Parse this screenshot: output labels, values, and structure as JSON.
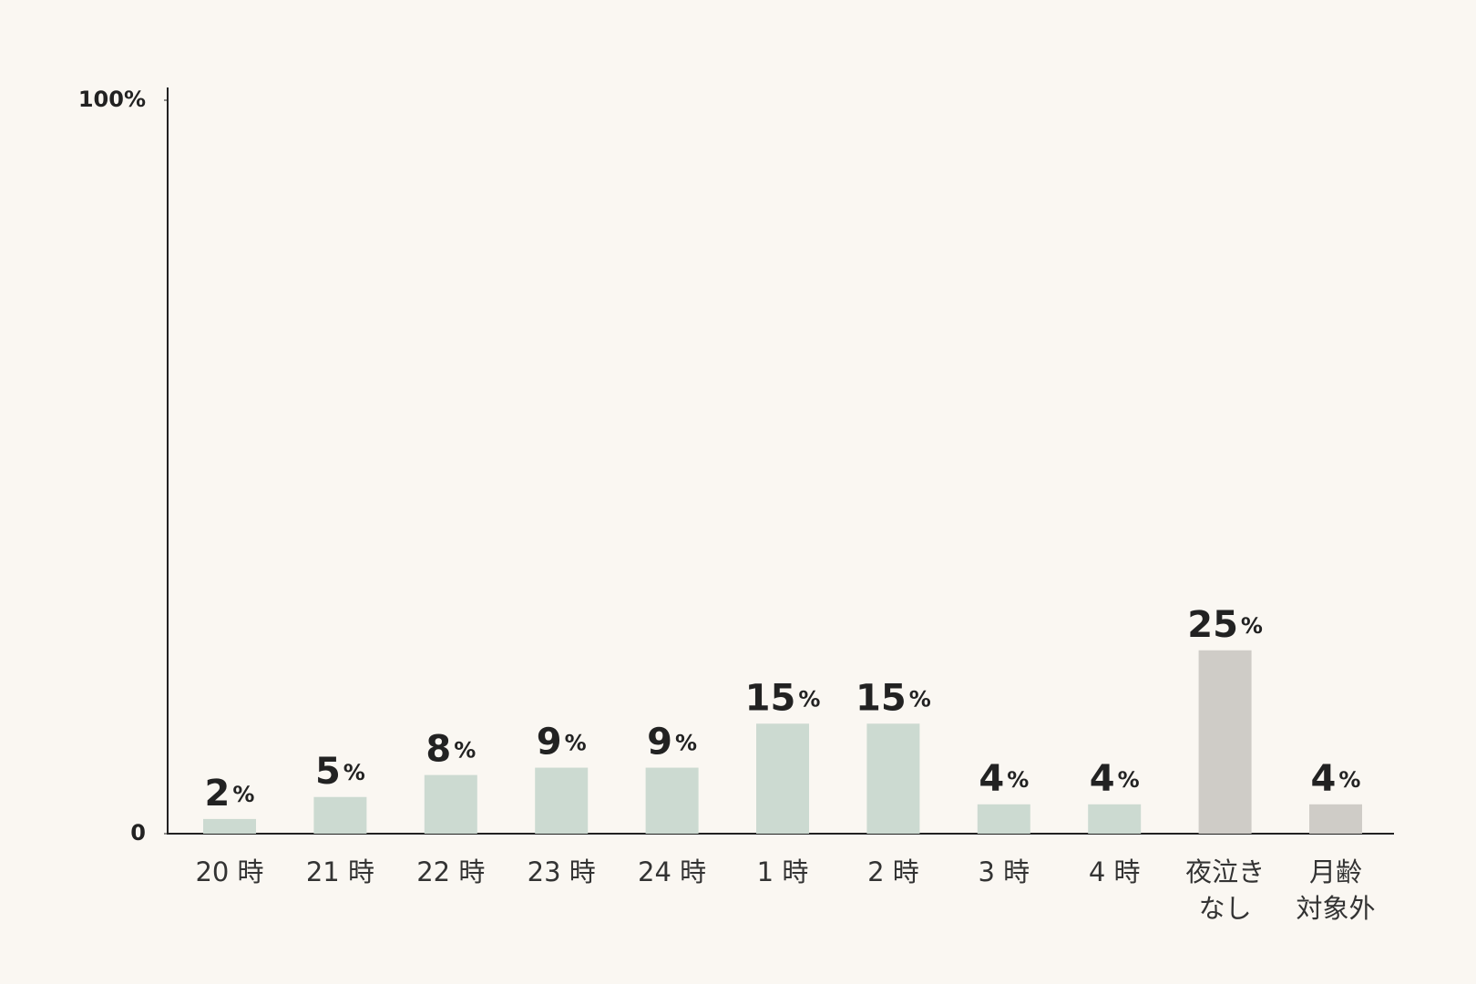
{
  "chart_data": {
    "type": "bar",
    "categories": [
      "20 時",
      "21 時",
      "22 時",
      "23 時",
      "24 時",
      "1 時",
      "2 時",
      "3 時",
      "4 時",
      "夜泣き\nなし",
      "月齢\n対象外"
    ],
    "values": [
      2,
      5,
      8,
      9,
      9,
      15,
      15,
      4,
      4,
      25,
      4
    ],
    "value_labels": [
      "2%",
      "5%",
      "8%",
      "9%",
      "9%",
      "15%",
      "15%",
      "4%",
      "4%",
      "25%",
      "4%"
    ],
    "colors": [
      "#ccdad1",
      "#ccdad1",
      "#ccdad1",
      "#ccdad1",
      "#ccdad1",
      "#ccdad1",
      "#ccdad1",
      "#ccdad1",
      "#ccdad1",
      "#cfccc7",
      "#cfccc7"
    ],
    "ylim": [
      0,
      100
    ],
    "yticks": [
      0,
      {
        "value": 100,
        "label": "100%"
      }
    ],
    "grid": false
  }
}
